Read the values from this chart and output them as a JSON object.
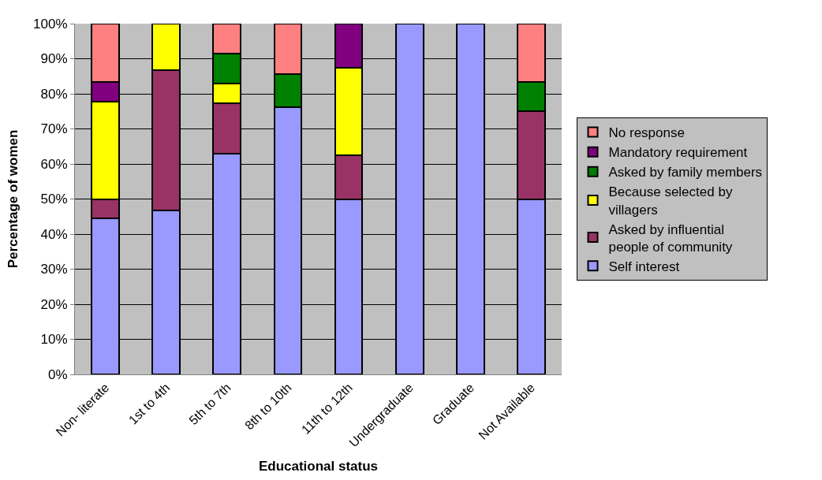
{
  "chart_data": {
    "type": "bar",
    "stacked": true,
    "xlabel": "Educational status",
    "ylabel": "Percentage of women",
    "categories": [
      "Non- literate",
      "1st to 4th",
      "5th to 7th",
      "8th to 10th",
      "11th to 12th",
      "Undergraduate",
      "Graduate",
      "Not Available"
    ],
    "series": [
      {
        "name": "Self interest",
        "color": "#9999ff",
        "values": [
          44.4,
          46.7,
          62.9,
          76.2,
          50,
          100,
          100,
          50
        ]
      },
      {
        "name": "Asked by influential people of community",
        "color": "#993366",
        "values": [
          5.6,
          40,
          14.3,
          0,
          12.5,
          0,
          0,
          25
        ]
      },
      {
        "name": "Because selected by villagers",
        "color": "#ffff00",
        "values": [
          27.8,
          13.3,
          5.7,
          0,
          25,
          0,
          0,
          0
        ]
      },
      {
        "name": "Asked by family members",
        "color": "#008000",
        "values": [
          0,
          0,
          8.6,
          9.5,
          0,
          0,
          0,
          8.3
        ]
      },
      {
        "name": "Mandatory requirement",
        "color": "#800080",
        "values": [
          5.6,
          0,
          0,
          0,
          12.5,
          0,
          0,
          0
        ]
      },
      {
        "name": "No response",
        "color": "#ff8080",
        "values": [
          16.7,
          0,
          8.6,
          14.3,
          0,
          0,
          0,
          16.7
        ]
      }
    ],
    "ylim": [
      0,
      100
    ],
    "yticks": [
      {
        "value": 0,
        "label": "0%"
      },
      {
        "value": 10,
        "label": "10%"
      },
      {
        "value": 20,
        "label": "20%"
      },
      {
        "value": 30,
        "label": "30%"
      },
      {
        "value": 40,
        "label": "40%"
      },
      {
        "value": 50,
        "label": "50%"
      },
      {
        "value": 60,
        "label": "60%"
      },
      {
        "value": 70,
        "label": "70%"
      },
      {
        "value": 80,
        "label": "80%"
      },
      {
        "value": 90,
        "label": "90%"
      },
      {
        "value": 100,
        "label": "100%"
      }
    ],
    "grid": "y",
    "legend": "right"
  }
}
